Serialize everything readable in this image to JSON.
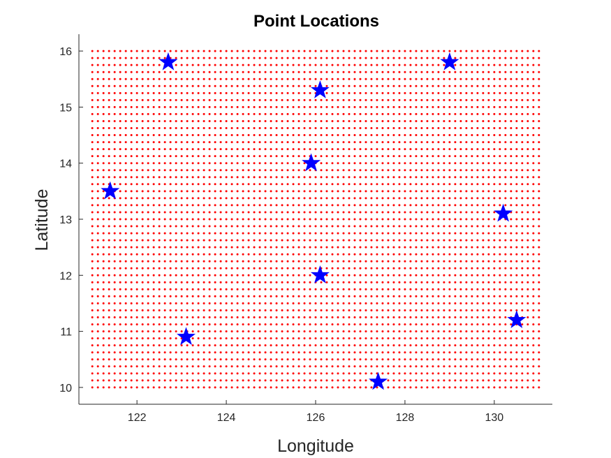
{
  "chart_data": {
    "type": "scatter",
    "title": "Point Locations",
    "xlabel": "Longitude",
    "ylabel": "Latitude",
    "xlim": [
      120.7,
      131.3
    ],
    "ylim": [
      9.7,
      16.3
    ],
    "xticks": [
      122,
      124,
      126,
      128,
      130
    ],
    "yticks": [
      10,
      11,
      12,
      13,
      14,
      15,
      16
    ],
    "grid": false,
    "series": [
      {
        "marker": "dot",
        "color": "#ff0000",
        "grid_points": {
          "x_start": 121,
          "x_end": 131,
          "x_step": 0.125,
          "y_start": 10,
          "y_end": 16,
          "y_step": 0.125
        }
      },
      {
        "marker": "star",
        "color": "#0000ff",
        "points": [
          {
            "x": 121.4,
            "y": 13.5
          },
          {
            "x": 122.7,
            "y": 15.8
          },
          {
            "x": 123.1,
            "y": 10.9
          },
          {
            "x": 125.9,
            "y": 14.0
          },
          {
            "x": 126.1,
            "y": 15.3
          },
          {
            "x": 126.1,
            "y": 12.0
          },
          {
            "x": 127.4,
            "y": 10.1
          },
          {
            "x": 129.0,
            "y": 15.8
          },
          {
            "x": 130.2,
            "y": 13.1
          },
          {
            "x": 130.5,
            "y": 11.2
          }
        ]
      }
    ]
  }
}
